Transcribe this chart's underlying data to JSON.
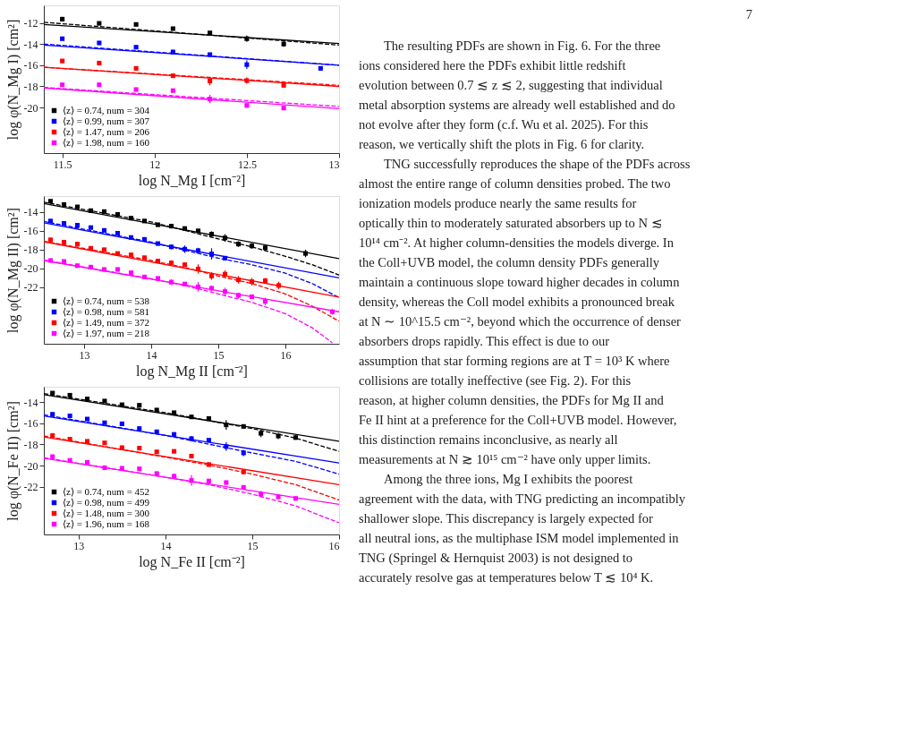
{
  "chart_data": [
    {
      "type": "scatter",
      "legend": "bottom left",
      "grid": false,
      "xlabel": "log  N_Mg I [cm⁻²]",
      "ylabel": "log φ(N_Mg I) [cm²]",
      "xlim": [
        11.4,
        13
      ],
      "ylim": [
        -24.3,
        -10.35
      ],
      "xticks": [
        11.5,
        12,
        12.5,
        13
      ],
      "yticks": [
        -20,
        -18,
        -16,
        -14,
        -12
      ],
      "annotations": [
        "7",
        "The resulting PDFs are shown in Fig. 6. For the three ions considered here the PDFs exhibit little redshift evolution between 0.7 ≲ z ≲ 2, suggesting that individual metal absorption systems are already well established and do not evolve after they form (c.f. Wu et al. 2025). For this reason, we vertically shift the plots in Fig. 6 for clarity.",
        "TNG successfully reproduces the shape of the PDFs across almost the entire range of column densities probed. The two ionization models produce nearly the same results for optically thin to moderately saturated absorbers up to N ≲ 10¹⁴ cm⁻². At higher column-densities the models diverge. In the Coll+UVB model, the column density PDFs generally maintain a continuous slope toward higher decades in column density, whereas the Coll model exhibits a pronounced break at N ∼ 10^15.5 cm⁻², beyond which the occurrence of denser absorbers drops rapidly. This effect is due to our assumption that star forming regions are at T = 10³ K where collisions are totally ineffective (see Fig. 2). For this reason, at higher column densities, the PDFs for Mg II and Fe II hint at a preference for the Coll+UVB model. However, this distinction remains inconclusive, as nearly all measurements at N ≳ 10¹⁵ cm⁻² have only upper limits.",
        "Among the three ions, Mg I exhibits the poorest agreement with the data, with TNG predicting an incompatibly shallower slope. This discrepancy is largely expected for all neutral ions, as the multiphase ISM model implemented in TNG (Springel & Hernquist 2003) is not designed to accurately resolve gas at temperatures below T ≲ 10⁴ K."
      ],
      "series": [
        {
          "type": "line",
          "color": "#000000",
          "line_style": "solid",
          "x": [
            11.4,
            13
          ],
          "values": [
            -12.15,
            -13.95
          ]
        },
        {
          "type": "line",
          "color": "#000000",
          "line_style": "dashed",
          "x": [
            11.4,
            13
          ],
          "values": [
            -11.95,
            -14.1
          ]
        },
        {
          "type": "line",
          "color": "#0000ff",
          "line_style": "solid",
          "x": [
            11.4,
            13
          ],
          "values": [
            -14.1,
            -16.0
          ]
        },
        {
          "type": "line",
          "color": "#0000ff",
          "line_style": "dashed",
          "x": [
            11.4,
            13
          ],
          "values": [
            -14.0,
            -16.0
          ]
        },
        {
          "type": "line",
          "color": "#ff0000",
          "line_style": "solid",
          "x": [
            11.4,
            13
          ],
          "values": [
            -16.2,
            -18.0
          ]
        },
        {
          "type": "line",
          "color": "#ff0000",
          "line_style": "dashed",
          "x": [
            11.4,
            13
          ],
          "values": [
            -16.2,
            -17.9
          ]
        },
        {
          "type": "line",
          "color": "#ff00ff",
          "line_style": "solid",
          "x": [
            11.4,
            13
          ],
          "values": [
            -18.15,
            -20.1
          ]
        },
        {
          "type": "line",
          "color": "#ff00ff",
          "line_style": "dashed",
          "x": [
            11.4,
            13
          ],
          "values": [
            -18.1,
            -19.9
          ]
        },
        {
          "type": "scatter",
          "marker": "square",
          "name": "⟨z⟩ = 0.74,  num = 304",
          "color": "#000000",
          "x": [
            11.5,
            11.7,
            11.9,
            12.1,
            12.3,
            12.5,
            12.7
          ],
          "values": [
            -11.65,
            -12.05,
            -12.15,
            -12.55,
            -12.95,
            -13.5,
            -14.0
          ],
          "errors": [
            0.1,
            0.1,
            0.1,
            0.1,
            0.15,
            0.3,
            0.25
          ]
        },
        {
          "type": "scatter",
          "marker": "square",
          "name": "⟨z⟩ = 0.99,  num = 307",
          "color": "#0000ff",
          "x": [
            11.5,
            11.7,
            11.9,
            12.1,
            12.3,
            12.5,
            12.9
          ],
          "values": [
            -13.5,
            -13.9,
            -14.3,
            -14.75,
            -15.0,
            -15.95,
            -16.3
          ],
          "errors": [
            0.1,
            0.1,
            0.15,
            0.2,
            0.15,
            0.4,
            0.2
          ]
        },
        {
          "type": "scatter",
          "marker": "square",
          "name": "⟨z⟩ = 1.47,  num = 206",
          "color": "#ff0000",
          "x": [
            11.5,
            11.7,
            11.9,
            12.1,
            12.3,
            12.5,
            12.7
          ],
          "values": [
            -15.6,
            -15.8,
            -16.3,
            -17.0,
            -17.5,
            -17.45,
            -17.9
          ],
          "errors": [
            0.1,
            0.1,
            0.15,
            0.2,
            0.4,
            0.3,
            0.2
          ]
        },
        {
          "type": "scatter",
          "marker": "square",
          "name": "⟨z⟩ = 1.98,  num = 160",
          "color": "#ff00ff",
          "x": [
            11.5,
            11.7,
            11.9,
            12.1,
            12.3,
            12.5,
            12.7
          ],
          "values": [
            -17.85,
            -17.85,
            -18.3,
            -18.4,
            -19.2,
            -19.8,
            -20.05
          ],
          "errors": [
            0.15,
            0.1,
            0.15,
            0.1,
            0.4,
            0.2,
            0.2
          ]
        }
      ]
    },
    {
      "type": "scatter",
      "legend": "bottom left",
      "grid": false,
      "xlabel": "log  N_Mg II [cm⁻²]",
      "ylabel": "log φ(N_Mg II) [cm²]",
      "xlim": [
        12.4,
        16.8
      ],
      "ylim": [
        -28,
        -12.3
      ],
      "xticks": [
        13,
        14,
        15,
        16
      ],
      "yticks": [
        -22,
        -20,
        -18,
        -16,
        -14
      ],
      "series": [
        {
          "type": "line",
          "color": "#000000",
          "line_style": "solid",
          "x": [
            12.4,
            16.8
          ],
          "values": [
            -13.1,
            -18.95
          ]
        },
        {
          "type": "line",
          "color": "#000000",
          "line_style": "dashed",
          "x": [
            12.4,
            14,
            15,
            15.5,
            16,
            16.4,
            16.8
          ],
          "values": [
            -12.95,
            -15.05,
            -16.85,
            -17.7,
            -18.7,
            -19.6,
            -20.7
          ]
        },
        {
          "type": "line",
          "color": "#0000ff",
          "line_style": "solid",
          "x": [
            12.4,
            16.8
          ],
          "values": [
            -15.15,
            -21.0
          ]
        },
        {
          "type": "line",
          "color": "#0000ff",
          "line_style": "dashed",
          "x": [
            12.4,
            14,
            15,
            15.5,
            16,
            16.4,
            16.8
          ],
          "values": [
            -15.0,
            -17.2,
            -18.9,
            -19.6,
            -20.5,
            -21.6,
            -23.1
          ]
        },
        {
          "type": "line",
          "color": "#ff0000",
          "line_style": "solid",
          "x": [
            12.4,
            16.8
          ],
          "values": [
            -17.15,
            -23.05
          ]
        },
        {
          "type": "line",
          "color": "#ff0000",
          "line_style": "dashed",
          "x": [
            12.4,
            14,
            14.5,
            15,
            15.5,
            16,
            16.4,
            16.8
          ],
          "values": [
            -17.1,
            -19.15,
            -19.9,
            -20.8,
            -21.6,
            -22.7,
            -24.0,
            -25.6
          ]
        },
        {
          "type": "line",
          "color": "#ff00ff",
          "line_style": "solid",
          "x": [
            12.4,
            16.8
          ],
          "values": [
            -19.15,
            -24.6
          ]
        },
        {
          "type": "line",
          "color": "#ff00ff",
          "line_style": "dashed",
          "x": [
            12.4,
            14,
            14.5,
            15,
            15.5,
            16,
            16.4,
            16.7
          ],
          "values": [
            -19.1,
            -21.1,
            -21.8,
            -22.7,
            -23.6,
            -24.8,
            -26.3,
            -27.9
          ]
        },
        {
          "type": "scatter",
          "marker": "square",
          "name": "⟨z⟩ = 0.74,  num = 538",
          "color": "#000000",
          "x": [
            12.5,
            12.7,
            12.9,
            13.1,
            13.3,
            13.5,
            13.7,
            13.9,
            14.1,
            14.3,
            14.5,
            14.7,
            14.9,
            15.1,
            15.3,
            15.5,
            15.7,
            16.3
          ],
          "values": [
            -12.85,
            -13.2,
            -13.45,
            -13.85,
            -13.95,
            -14.25,
            -14.65,
            -14.95,
            -15.35,
            -15.5,
            -15.75,
            -16.0,
            -16.35,
            -16.75,
            -17.4,
            -17.6,
            -17.8,
            -18.4
          ],
          "errors": [
            0.1,
            0.1,
            0.1,
            0.1,
            0.1,
            0.1,
            0.1,
            0.1,
            0.15,
            0.15,
            0.15,
            0.2,
            0.3,
            0.4,
            0.3,
            0.3,
            0.3,
            0.4
          ]
        },
        {
          "type": "scatter",
          "marker": "square",
          "name": "⟨z⟩ = 0.98,  num = 581",
          "color": "#0000ff",
          "x": [
            12.5,
            12.7,
            12.9,
            13.1,
            13.3,
            13.5,
            13.7,
            13.9,
            14.1,
            14.3,
            14.5,
            14.7,
            14.9,
            15.1
          ],
          "values": [
            -14.95,
            -15.2,
            -15.4,
            -15.65,
            -15.95,
            -16.25,
            -16.7,
            -16.9,
            -17.35,
            -17.7,
            -17.95,
            -18.1,
            -18.45,
            -18.9
          ],
          "errors": [
            0.1,
            0.1,
            0.1,
            0.15,
            0.1,
            0.1,
            0.1,
            0.1,
            0.2,
            0.25,
            0.4,
            0.3,
            0.6,
            0.2
          ]
        },
        {
          "type": "scatter",
          "marker": "square",
          "name": "⟨z⟩ = 1.49,  num = 372",
          "color": "#ff0000",
          "x": [
            12.5,
            12.7,
            12.9,
            13.1,
            13.3,
            13.5,
            13.7,
            13.9,
            14.1,
            14.3,
            14.5,
            14.7,
            14.9,
            15.1,
            15.3,
            15.5,
            15.7,
            15.9
          ],
          "values": [
            -16.95,
            -17.2,
            -17.4,
            -17.85,
            -18.0,
            -18.4,
            -18.55,
            -18.85,
            -19.2,
            -19.4,
            -19.6,
            -20.05,
            -20.8,
            -20.6,
            -21.2,
            -21.4,
            -21.3,
            -21.8
          ],
          "errors": [
            0.1,
            0.1,
            0.15,
            0.1,
            0.1,
            0.1,
            0.1,
            0.15,
            0.2,
            0.25,
            0.25,
            0.5,
            0.4,
            0.4,
            0.4,
            0.4,
            0.3,
            0.4
          ]
        },
        {
          "type": "scatter",
          "marker": "square",
          "name": "⟨z⟩ = 1.97,  num = 218",
          "color": "#ff00ff",
          "x": [
            12.5,
            12.7,
            12.9,
            13.1,
            13.3,
            13.5,
            13.7,
            13.9,
            14.1,
            14.3,
            14.5,
            14.7,
            14.9,
            15.1,
            15.3,
            15.5,
            15.7,
            16.7
          ],
          "values": [
            -19.15,
            -19.25,
            -19.7,
            -19.85,
            -20.1,
            -20.1,
            -20.45,
            -20.9,
            -21.05,
            -21.45,
            -21.65,
            -21.95,
            -22.1,
            -22.45,
            -22.85,
            -23.0,
            -23.5,
            -24.6
          ],
          "errors": [
            0.1,
            0.1,
            0.1,
            0.1,
            0.1,
            0.2,
            0.1,
            0.2,
            0.2,
            0.3,
            0.2,
            0.5,
            0.3,
            0.4,
            0.3,
            0.2,
            0.4,
            0.3
          ]
        }
      ]
    },
    {
      "type": "scatter",
      "legend": "bottom left",
      "grid": false,
      "xlabel": "log  N_Fe II [cm⁻²]",
      "ylabel": "log φ(N_Fe II) [cm²]",
      "xlim": [
        12.6,
        16
      ],
      "ylim": [
        -26.5,
        -12.55
      ],
      "xticks": [
        13,
        14,
        15,
        16
      ],
      "yticks": [
        -22,
        -20,
        -18,
        -16,
        -14
      ],
      "series": [
        {
          "type": "line",
          "color": "#000000",
          "line_style": "solid",
          "x": [
            12.6,
            16
          ],
          "values": [
            -13.3,
            -17.7
          ]
        },
        {
          "type": "line",
          "color": "#000000",
          "line_style": "dashed",
          "x": [
            12.6,
            14,
            15,
            15.5,
            16
          ],
          "values": [
            -13.2,
            -15.0,
            -16.5,
            -17.4,
            -18.65
          ]
        },
        {
          "type": "line",
          "color": "#0000ff",
          "line_style": "solid",
          "x": [
            12.6,
            16
          ],
          "values": [
            -15.3,
            -19.75
          ]
        },
        {
          "type": "line",
          "color": "#0000ff",
          "line_style": "dashed",
          "x": [
            12.6,
            14,
            15,
            15.5,
            16
          ],
          "values": [
            -15.2,
            -17.15,
            -18.8,
            -19.6,
            -20.8
          ]
        },
        {
          "type": "line",
          "color": "#ff0000",
          "line_style": "solid",
          "x": [
            12.6,
            16
          ],
          "values": [
            -17.3,
            -21.8
          ]
        },
        {
          "type": "line",
          "color": "#ff0000",
          "line_style": "dashed",
          "x": [
            12.6,
            14,
            14.5,
            15,
            15.5,
            16
          ],
          "values": [
            -17.2,
            -19.2,
            -19.95,
            -20.8,
            -21.8,
            -23.25
          ]
        },
        {
          "type": "line",
          "color": "#ff00ff",
          "line_style": "solid",
          "x": [
            12.6,
            16
          ],
          "values": [
            -19.3,
            -23.65
          ]
        },
        {
          "type": "line",
          "color": "#ff00ff",
          "line_style": "dashed",
          "x": [
            12.6,
            14,
            14.5,
            15,
            15.5,
            16
          ],
          "values": [
            -19.25,
            -21.1,
            -21.8,
            -22.7,
            -23.8,
            -25.4
          ]
        },
        {
          "type": "scatter",
          "marker": "square",
          "name": "⟨z⟩ = 0.74,  num = 452",
          "color": "#000000",
          "x": [
            12.7,
            12.9,
            13.1,
            13.3,
            13.5,
            13.7,
            13.9,
            14.1,
            14.3,
            14.5,
            14.7,
            14.9,
            15.1,
            15.3,
            15.5
          ],
          "values": [
            -13.15,
            -13.35,
            -13.7,
            -13.9,
            -14.25,
            -14.3,
            -14.75,
            -15.0,
            -15.4,
            -15.55,
            -16.15,
            -16.3,
            -16.95,
            -17.2,
            -17.35
          ],
          "errors": [
            0.1,
            0.1,
            0.1,
            0.1,
            0.15,
            0.1,
            0.2,
            0.15,
            0.2,
            0.1,
            0.45,
            0.15,
            0.35,
            0.3,
            0.2
          ]
        },
        {
          "type": "scatter",
          "marker": "square",
          "name": "⟨z⟩ = 0.98,  num = 499",
          "color": "#0000ff",
          "x": [
            12.7,
            12.9,
            13.1,
            13.3,
            13.5,
            13.7,
            13.9,
            14.1,
            14.3,
            14.5,
            14.7,
            14.9
          ],
          "values": [
            -15.15,
            -15.3,
            -15.6,
            -15.95,
            -16.05,
            -16.5,
            -16.8,
            -17.05,
            -17.45,
            -17.6,
            -18.2,
            -18.8
          ],
          "errors": [
            0.1,
            0.1,
            0.15,
            0.15,
            0.1,
            0.2,
            0.2,
            0.2,
            0.25,
            0.1,
            0.4,
            0.3
          ]
        },
        {
          "type": "scatter",
          "marker": "square",
          "name": "⟨z⟩ = 1.48,  num = 300",
          "color": "#ff0000",
          "x": [
            12.7,
            12.9,
            13.1,
            13.3,
            13.5,
            13.7,
            13.9,
            14.1,
            14.3,
            14.5,
            14.9
          ],
          "values": [
            -17.15,
            -17.5,
            -17.7,
            -17.85,
            -18.3,
            -18.35,
            -18.7,
            -18.65,
            -19.1,
            -19.9,
            -20.6
          ],
          "errors": [
            0.1,
            0.1,
            0.15,
            0.15,
            0.2,
            0.1,
            0.2,
            0.1,
            0.15,
            0.2,
            0.2
          ]
        },
        {
          "type": "scatter",
          "marker": "square",
          "name": "⟨z⟩ = 1.96,  num = 168",
          "color": "#ff00ff",
          "x": [
            12.7,
            12.9,
            13.1,
            13.3,
            13.5,
            13.7,
            13.9,
            14.1,
            14.3,
            14.5,
            14.7,
            14.9,
            15.1,
            15.3,
            15.5
          ],
          "values": [
            -19.15,
            -19.5,
            -19.7,
            -20.2,
            -20.25,
            -20.3,
            -20.75,
            -21.0,
            -21.4,
            -21.45,
            -21.6,
            -22.05,
            -22.7,
            -22.95,
            -23.1
          ],
          "errors": [
            0.15,
            0.1,
            0.15,
            0.1,
            0.1,
            0.15,
            0.2,
            0.25,
            0.5,
            0.2,
            0.2,
            0.15,
            0.3,
            0.2,
            0.2
          ]
        }
      ]
    }
  ]
}
